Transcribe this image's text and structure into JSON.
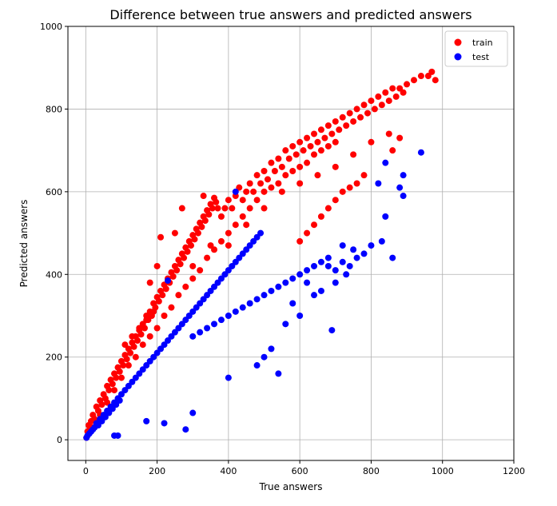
{
  "chart_data": {
    "type": "scatter",
    "title": "Difference between true answers and predicted answers",
    "xlabel": "True answers",
    "ylabel": "Predicted answers",
    "xlim": [
      -50,
      1200
    ],
    "ylim": [
      -50,
      1000
    ],
    "xticks": [
      0,
      200,
      400,
      600,
      800,
      1000,
      1200
    ],
    "yticks": [
      0,
      200,
      400,
      600,
      800,
      1000
    ],
    "grid": true,
    "legend_position": "top-right",
    "series": [
      {
        "name": "train",
        "color": "#ff0000",
        "points": [
          [
            2,
            5
          ],
          [
            5,
            20
          ],
          [
            8,
            35
          ],
          [
            12,
            30
          ],
          [
            15,
            45
          ],
          [
            20,
            60
          ],
          [
            25,
            50
          ],
          [
            30,
            80
          ],
          [
            35,
            70
          ],
          [
            40,
            95
          ],
          [
            45,
            85
          ],
          [
            50,
            110
          ],
          [
            55,
            100
          ],
          [
            60,
            130
          ],
          [
            65,
            120
          ],
          [
            70,
            145
          ],
          [
            75,
            135
          ],
          [
            80,
            160
          ],
          [
            85,
            150
          ],
          [
            90,
            175
          ],
          [
            95,
            165
          ],
          [
            100,
            190
          ],
          [
            105,
            180
          ],
          [
            110,
            205
          ],
          [
            115,
            195
          ],
          [
            120,
            220
          ],
          [
            125,
            210
          ],
          [
            130,
            235
          ],
          [
            135,
            225
          ],
          [
            140,
            250
          ],
          [
            145,
            240
          ],
          [
            150,
            265
          ],
          [
            155,
            255
          ],
          [
            160,
            280
          ],
          [
            165,
            270
          ],
          [
            170,
            300
          ],
          [
            175,
            290
          ],
          [
            180,
            310
          ],
          [
            185,
            300
          ],
          [
            190,
            330
          ],
          [
            195,
            320
          ],
          [
            200,
            345
          ],
          [
            205,
            335
          ],
          [
            210,
            360
          ],
          [
            215,
            350
          ],
          [
            220,
            375
          ],
          [
            225,
            365
          ],
          [
            230,
            390
          ],
          [
            235,
            380
          ],
          [
            240,
            405
          ],
          [
            245,
            395
          ],
          [
            250,
            420
          ],
          [
            255,
            410
          ],
          [
            260,
            435
          ],
          [
            265,
            425
          ],
          [
            270,
            450
          ],
          [
            275,
            440
          ],
          [
            280,
            465
          ],
          [
            285,
            455
          ],
          [
            290,
            480
          ],
          [
            295,
            470
          ],
          [
            300,
            495
          ],
          [
            305,
            485
          ],
          [
            310,
            510
          ],
          [
            315,
            500
          ],
          [
            320,
            525
          ],
          [
            325,
            515
          ],
          [
            330,
            540
          ],
          [
            335,
            530
          ],
          [
            340,
            555
          ],
          [
            345,
            545
          ],
          [
            350,
            570
          ],
          [
            355,
            560
          ],
          [
            360,
            585
          ],
          [
            365,
            575
          ],
          [
            370,
            560
          ],
          [
            380,
            540
          ],
          [
            390,
            560
          ],
          [
            400,
            580
          ],
          [
            410,
            560
          ],
          [
            420,
            590
          ],
          [
            430,
            610
          ],
          [
            440,
            580
          ],
          [
            450,
            600
          ],
          [
            460,
            620
          ],
          [
            470,
            600
          ],
          [
            480,
            640
          ],
          [
            490,
            620
          ],
          [
            500,
            650
          ],
          [
            510,
            630
          ],
          [
            520,
            670
          ],
          [
            530,
            650
          ],
          [
            540,
            680
          ],
          [
            550,
            660
          ],
          [
            560,
            700
          ],
          [
            570,
            680
          ],
          [
            580,
            710
          ],
          [
            590,
            690
          ],
          [
            600,
            720
          ],
          [
            610,
            700
          ],
          [
            620,
            730
          ],
          [
            630,
            710
          ],
          [
            640,
            740
          ],
          [
            650,
            720
          ],
          [
            660,
            750
          ],
          [
            670,
            730
          ],
          [
            680,
            760
          ],
          [
            690,
            740
          ],
          [
            700,
            770
          ],
          [
            710,
            750
          ],
          [
            720,
            780
          ],
          [
            730,
            760
          ],
          [
            740,
            790
          ],
          [
            750,
            770
          ],
          [
            760,
            800
          ],
          [
            770,
            780
          ],
          [
            780,
            810
          ],
          [
            790,
            790
          ],
          [
            800,
            820
          ],
          [
            810,
            800
          ],
          [
            820,
            830
          ],
          [
            830,
            810
          ],
          [
            840,
            840
          ],
          [
            850,
            820
          ],
          [
            860,
            850
          ],
          [
            870,
            830
          ],
          [
            880,
            850
          ],
          [
            890,
            840
          ],
          [
            900,
            860
          ],
          [
            920,
            870
          ],
          [
            940,
            880
          ],
          [
            960,
            880
          ],
          [
            970,
            890
          ],
          [
            980,
            870
          ],
          [
            120,
            180
          ],
          [
            140,
            200
          ],
          [
            160,
            230
          ],
          [
            180,
            250
          ],
          [
            200,
            270
          ],
          [
            220,
            300
          ],
          [
            240,
            320
          ],
          [
            260,
            350
          ],
          [
            280,
            370
          ],
          [
            300,
            390
          ],
          [
            320,
            410
          ],
          [
            340,
            440
          ],
          [
            360,
            460
          ],
          [
            380,
            480
          ],
          [
            400,
            500
          ],
          [
            420,
            520
          ],
          [
            440,
            540
          ],
          [
            460,
            560
          ],
          [
            480,
            580
          ],
          [
            500,
            600
          ],
          [
            520,
            610
          ],
          [
            540,
            620
          ],
          [
            560,
            640
          ],
          [
            580,
            650
          ],
          [
            600,
            660
          ],
          [
            620,
            670
          ],
          [
            640,
            690
          ],
          [
            660,
            700
          ],
          [
            680,
            710
          ],
          [
            700,
            720
          ],
          [
            180,
            380
          ],
          [
            200,
            420
          ],
          [
            210,
            490
          ],
          [
            250,
            500
          ],
          [
            270,
            560
          ],
          [
            330,
            590
          ],
          [
            300,
            420
          ],
          [
            350,
            470
          ],
          [
            400,
            470
          ],
          [
            450,
            520
          ],
          [
            500,
            560
          ],
          [
            550,
            600
          ],
          [
            600,
            620
          ],
          [
            650,
            640
          ],
          [
            700,
            660
          ],
          [
            750,
            690
          ],
          [
            800,
            720
          ],
          [
            850,
            740
          ],
          [
            860,
            700
          ],
          [
            880,
            730
          ],
          [
            100,
            150
          ],
          [
            80,
            120
          ],
          [
            60,
            90
          ],
          [
            40,
            60
          ],
          [
            20,
            30
          ],
          [
            110,
            230
          ],
          [
            130,
            250
          ],
          [
            150,
            270
          ],
          [
            170,
            290
          ],
          [
            190,
            310
          ],
          [
            600,
            480
          ],
          [
            620,
            500
          ],
          [
            640,
            520
          ],
          [
            660,
            540
          ],
          [
            680,
            560
          ],
          [
            700,
            580
          ],
          [
            720,
            600
          ],
          [
            740,
            610
          ],
          [
            760,
            620
          ],
          [
            780,
            640
          ]
        ]
      },
      {
        "name": "test",
        "color": "#0000ff",
        "points": [
          [
            2,
            5
          ],
          [
            5,
            10
          ],
          [
            10,
            15
          ],
          [
            15,
            20
          ],
          [
            20,
            25
          ],
          [
            25,
            30
          ],
          [
            30,
            40
          ],
          [
            35,
            35
          ],
          [
            40,
            50
          ],
          [
            45,
            45
          ],
          [
            50,
            60
          ],
          [
            55,
            55
          ],
          [
            60,
            70
          ],
          [
            65,
            65
          ],
          [
            70,
            80
          ],
          [
            75,
            75
          ],
          [
            80,
            90
          ],
          [
            85,
            85
          ],
          [
            90,
            100
          ],
          [
            95,
            95
          ],
          [
            100,
            110
          ],
          [
            110,
            120
          ],
          [
            120,
            130
          ],
          [
            130,
            140
          ],
          [
            140,
            150
          ],
          [
            150,
            160
          ],
          [
            160,
            170
          ],
          [
            170,
            180
          ],
          [
            180,
            190
          ],
          [
            190,
            200
          ],
          [
            200,
            210
          ],
          [
            210,
            220
          ],
          [
            220,
            230
          ],
          [
            230,
            240
          ],
          [
            240,
            250
          ],
          [
            250,
            260
          ],
          [
            260,
            270
          ],
          [
            270,
            280
          ],
          [
            280,
            290
          ],
          [
            290,
            300
          ],
          [
            300,
            310
          ],
          [
            310,
            320
          ],
          [
            320,
            330
          ],
          [
            330,
            340
          ],
          [
            340,
            350
          ],
          [
            350,
            360
          ],
          [
            360,
            370
          ],
          [
            370,
            380
          ],
          [
            380,
            390
          ],
          [
            390,
            400
          ],
          [
            400,
            410
          ],
          [
            410,
            420
          ],
          [
            420,
            430
          ],
          [
            430,
            440
          ],
          [
            440,
            450
          ],
          [
            450,
            460
          ],
          [
            460,
            470
          ],
          [
            470,
            480
          ],
          [
            480,
            490
          ],
          [
            490,
            500
          ],
          [
            300,
            250
          ],
          [
            320,
            260
          ],
          [
            340,
            270
          ],
          [
            360,
            280
          ],
          [
            380,
            290
          ],
          [
            400,
            300
          ],
          [
            420,
            310
          ],
          [
            440,
            320
          ],
          [
            460,
            330
          ],
          [
            480,
            340
          ],
          [
            500,
            350
          ],
          [
            520,
            360
          ],
          [
            540,
            370
          ],
          [
            560,
            380
          ],
          [
            580,
            390
          ],
          [
            600,
            400
          ],
          [
            620,
            410
          ],
          [
            640,
            420
          ],
          [
            660,
            430
          ],
          [
            680,
            440
          ],
          [
            700,
            410
          ],
          [
            720,
            430
          ],
          [
            740,
            420
          ],
          [
            760,
            440
          ],
          [
            780,
            450
          ],
          [
            800,
            470
          ],
          [
            830,
            480
          ],
          [
            840,
            540
          ],
          [
            860,
            440
          ],
          [
            880,
            610
          ],
          [
            890,
            640
          ],
          [
            890,
            590
          ],
          [
            940,
            695
          ],
          [
            840,
            670
          ],
          [
            820,
            620
          ],
          [
            690,
            265
          ],
          [
            540,
            160
          ],
          [
            500,
            200
          ],
          [
            480,
            180
          ],
          [
            400,
            150
          ],
          [
            280,
            25
          ],
          [
            300,
            65
          ],
          [
            220,
            40
          ],
          [
            170,
            45
          ],
          [
            80,
            10
          ],
          [
            90,
            10
          ],
          [
            230,
            385
          ],
          [
            420,
            600
          ],
          [
            600,
            300
          ],
          [
            640,
            350
          ],
          [
            520,
            220
          ],
          [
            560,
            280
          ],
          [
            580,
            330
          ],
          [
            620,
            380
          ],
          [
            660,
            360
          ],
          [
            700,
            380
          ],
          [
            730,
            400
          ],
          [
            750,
            460
          ],
          [
            720,
            470
          ],
          [
            680,
            420
          ]
        ]
      }
    ]
  }
}
